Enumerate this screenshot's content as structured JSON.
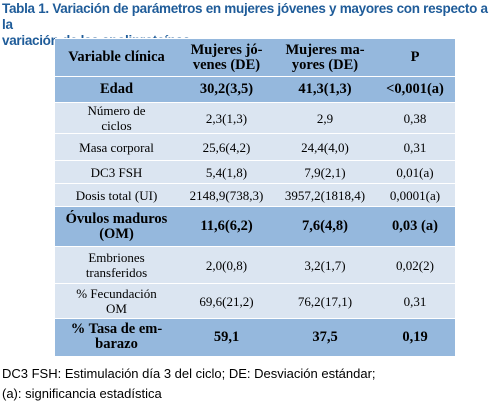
{
  "title": [
    "Tabla 1. Variación de parámetros en mujeres jóvenes y mayores con respecto a la",
    "variación de las apoliproteínas."
  ],
  "table": {
    "rows": [
      [
        [
          "Variable clínica"
        ],
        [
          "Mujeres jó-",
          "venes (DE)"
        ],
        [
          "Mujeres ma-",
          "yores (DE)"
        ],
        [
          "P"
        ]
      ],
      [
        [
          "Edad"
        ],
        [
          "30,2(3,5)"
        ],
        [
          "41,3(1,3)"
        ],
        [
          "<0,001(a)"
        ]
      ],
      [
        [
          "Número de",
          "ciclos"
        ],
        [
          "2,3(1,3)"
        ],
        [
          "2,9"
        ],
        [
          "0,38"
        ]
      ],
      [
        [
          "Masa corporal"
        ],
        [
          "25,6(4,2)"
        ],
        [
          "24,4(4,0)"
        ],
        [
          "0,31"
        ]
      ],
      [
        [
          "DC3 FSH"
        ],
        [
          "5,4(1,8)"
        ],
        [
          "7,9(2,1)"
        ],
        [
          "0,01(a)"
        ]
      ],
      [
        [
          "Dosis total (UI)"
        ],
        [
          "2148,9(738,3)"
        ],
        [
          "3957,2(1818,4)"
        ],
        [
          "0,0001(a)"
        ]
      ],
      [
        [
          "Óvulos maduros",
          "(OM)"
        ],
        [
          "11,6(6,2)"
        ],
        [
          "7,6(4,8)"
        ],
        [
          "0,03 (a)"
        ]
      ],
      [
        [
          "Embriones",
          "transferidos"
        ],
        [
          "2,0(0,8)"
        ],
        [
          "3,2(1,7)"
        ],
        [
          "0,02(2)"
        ]
      ],
      [
        [
          "% Fecundación",
          "OM"
        ],
        [
          "69,6(21,2)"
        ],
        [
          "76,2(17,1)"
        ],
        [
          "0,31"
        ]
      ],
      [
        [
          "% Tasa de em-",
          "barazo"
        ],
        [
          "59,1"
        ],
        [
          "37,5"
        ],
        [
          "0,19"
        ]
      ]
    ]
  },
  "footnote": [
    "DC3 FSH: Estimulación día 3 del ciclo; DE: Desviación estándar;",
    "(a): significancia estadística"
  ]
}
